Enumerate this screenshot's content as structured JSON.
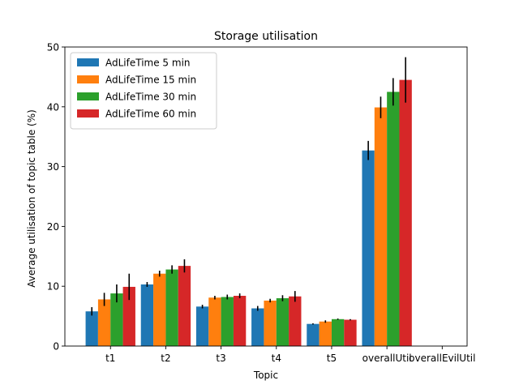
{
  "chart_data": {
    "type": "bar",
    "title": "Storage utilisation",
    "xlabel": "Topic",
    "ylabel": "Average utilisation of topic table (%)",
    "categories": [
      "t1",
      "t2",
      "t3",
      "t4",
      "t5",
      "overallUtil",
      "overallEvilUtil"
    ],
    "ylim": [
      0,
      50
    ],
    "yticks": [
      0,
      10,
      20,
      30,
      40,
      50
    ],
    "grid": false,
    "legend_position": "top-left",
    "series": [
      {
        "name": "AdLifeTime 5 min",
        "color": "#1f77b4",
        "values": [
          5.8,
          10.3,
          6.6,
          6.3,
          3.7,
          32.7,
          0
        ],
        "errors": [
          0.7,
          0.4,
          0.3,
          0.4,
          0.1,
          1.6,
          0
        ]
      },
      {
        "name": "AdLifeTime 15 min",
        "color": "#ff7f0e",
        "values": [
          7.8,
          12.1,
          8.1,
          7.6,
          4.1,
          39.9,
          0
        ],
        "errors": [
          1.1,
          0.5,
          0.3,
          0.3,
          0.2,
          1.8,
          0
        ]
      },
      {
        "name": "AdLifeTime 30 min",
        "color": "#2ca02c",
        "values": [
          8.8,
          12.8,
          8.2,
          8.0,
          4.5,
          42.5,
          0
        ],
        "errors": [
          1.5,
          0.7,
          0.4,
          0.5,
          0.1,
          2.3,
          0
        ]
      },
      {
        "name": "AdLifeTime 60 min",
        "color": "#d62728",
        "values": [
          9.9,
          13.4,
          8.4,
          8.3,
          4.4,
          44.5,
          0
        ],
        "errors": [
          2.2,
          1.1,
          0.4,
          0.9,
          0.1,
          3.8,
          0
        ]
      }
    ]
  }
}
